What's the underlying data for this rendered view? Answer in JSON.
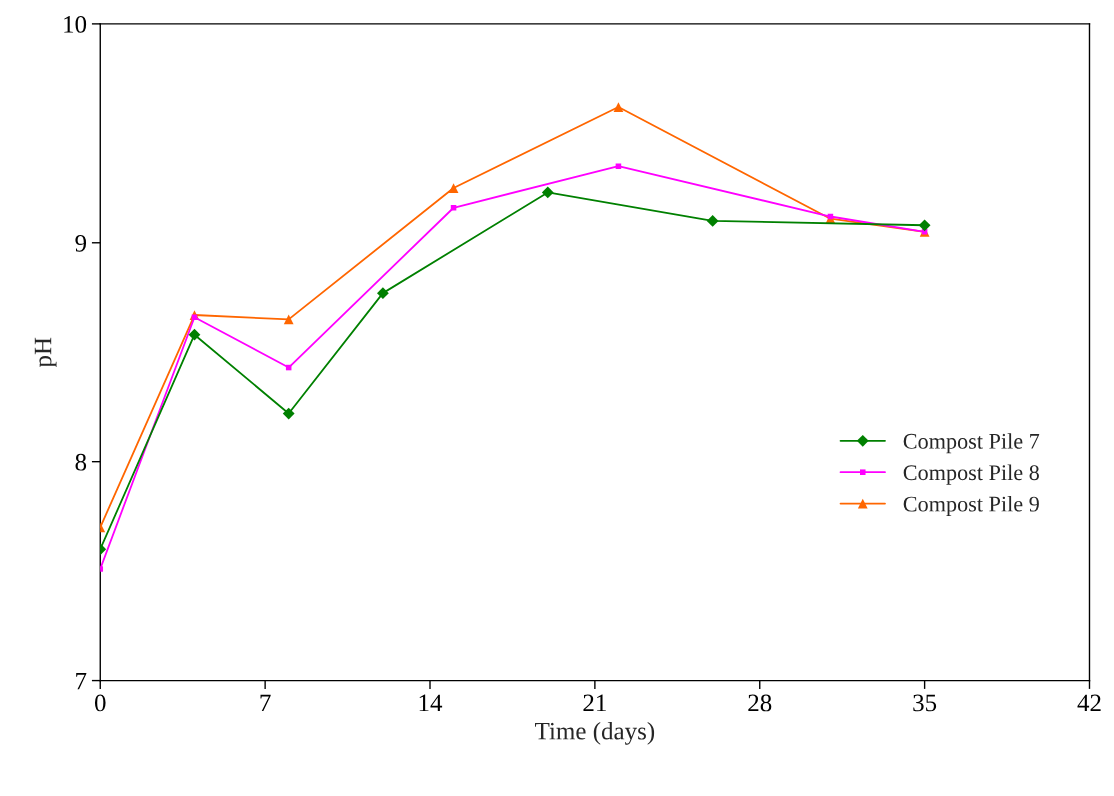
{
  "chart_data": {
    "type": "line",
    "xlabel": "Time (days)",
    "ylabel": "pH",
    "xlim": [
      0,
      42
    ],
    "xticks": [
      0,
      7,
      14,
      21,
      28,
      35,
      42
    ],
    "ylim": [
      7,
      10
    ],
    "yticks": [
      7,
      8,
      9,
      10
    ],
    "grid": false,
    "legend": "bottom right",
    "series": [
      {
        "name": "Compost Pile 7",
        "color": "#008000",
        "marker": "diamond",
        "x": [
          0,
          4,
          8,
          12,
          19,
          26,
          35
        ],
        "values": [
          7.6,
          8.58,
          8.22,
          8.77,
          9.23,
          9.1,
          9.08
        ]
      },
      {
        "name": "Compost Pile 8",
        "color": "#ff00ff",
        "marker": "square",
        "x": [
          0,
          4,
          8,
          15,
          22,
          31,
          35
        ],
        "values": [
          7.51,
          8.66,
          8.43,
          9.16,
          9.35,
          9.12,
          9.05
        ]
      },
      {
        "name": "Compost Pile 9",
        "color": "#ff6600",
        "marker": "triangle",
        "x": [
          0,
          4,
          8,
          15,
          22,
          31,
          35
        ],
        "values": [
          7.7,
          8.67,
          8.65,
          9.25,
          9.62,
          9.11,
          9.05
        ]
      }
    ]
  }
}
